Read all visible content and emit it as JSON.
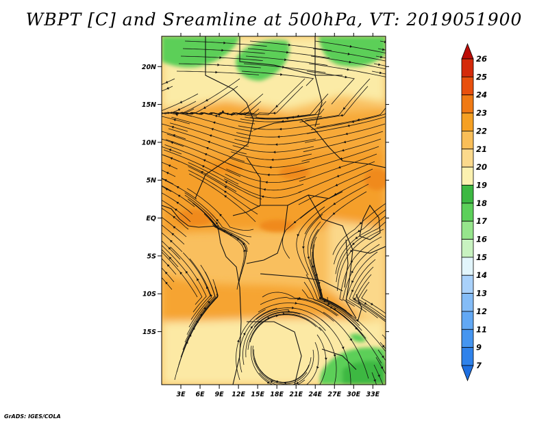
{
  "title": "WBPT [C] and Sreamline at 500hPa, VT: 2019051900",
  "credit": "GrADS: IGES/COLA",
  "map": {
    "variable": "Wet-bulb potential temperature",
    "units": "C",
    "level": "500hPa",
    "valid_time": "2019051900",
    "lon_range": [
      0,
      35
    ],
    "lat_range": [
      -22,
      24
    ],
    "lat_ticks": [
      {
        "value": 20,
        "label": "20N"
      },
      {
        "value": 15,
        "label": "15N"
      },
      {
        "value": 10,
        "label": "10N"
      },
      {
        "value": 5,
        "label": "5N"
      },
      {
        "value": 0,
        "label": "EQ"
      },
      {
        "value": -5,
        "label": "5S"
      },
      {
        "value": -10,
        "label": "10S"
      },
      {
        "value": -15,
        "label": "15S"
      }
    ],
    "lon_ticks": [
      {
        "value": 3,
        "label": "3E"
      },
      {
        "value": 6,
        "label": "6E"
      },
      {
        "value": 9,
        "label": "9E"
      },
      {
        "value": 12,
        "label": "12E"
      },
      {
        "value": 15,
        "label": "15E"
      },
      {
        "value": 18,
        "label": "18E"
      },
      {
        "value": 21,
        "label": "21E"
      },
      {
        "value": 24,
        "label": "24E"
      },
      {
        "value": 27,
        "label": "27E"
      },
      {
        "value": 30,
        "label": "30E"
      },
      {
        "value": 33,
        "label": "33E"
      }
    ]
  },
  "colorbar": {
    "labels": [
      "7",
      "9",
      "11",
      "12",
      "13",
      "14",
      "15",
      "16",
      "17",
      "18",
      "19",
      "20",
      "21",
      "22",
      "23",
      "24",
      "25",
      "26"
    ],
    "colors": [
      "#1e6fe0",
      "#2f82ea",
      "#4595f0",
      "#62a8f4",
      "#84bcf7",
      "#a9d1fa",
      "#e2f5fb",
      "#c8f2c0",
      "#96e58c",
      "#5cd05a",
      "#3cb842",
      "#fbf1b0",
      "#fbd98c",
      "#f9be58",
      "#f5a023",
      "#f07a14",
      "#e8500d",
      "#d42a0a",
      "#bc0c06"
    ]
  }
}
